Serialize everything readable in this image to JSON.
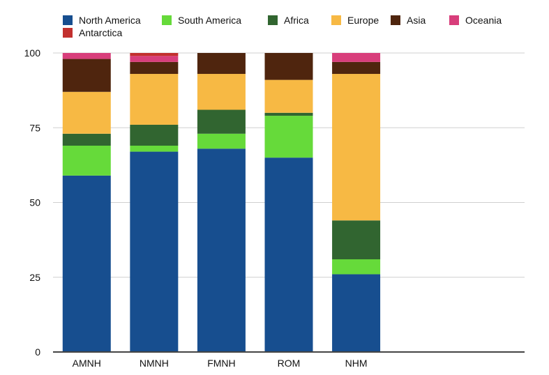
{
  "chart_data": {
    "type": "bar",
    "stacked": true,
    "title": "",
    "xlabel": "",
    "ylabel": "",
    "ylim": [
      0,
      100
    ],
    "yticks": [
      "0",
      "25",
      "50",
      "75",
      "100"
    ],
    "grid": true,
    "legend_position": "top-left",
    "categories": [
      "AMNH",
      "NMNH",
      "FMNH",
      "ROM",
      "NHM"
    ],
    "series": [
      {
        "name": "North America",
        "color": "#174e8f",
        "values": [
          59,
          67,
          68,
          65,
          26
        ]
      },
      {
        "name": "South America",
        "color": "#66da3a",
        "values": [
          10,
          2,
          5,
          14,
          5
        ]
      },
      {
        "name": "Africa",
        "color": "#316530",
        "values": [
          4,
          7,
          8,
          1,
          13
        ]
      },
      {
        "name": "Europe",
        "color": "#f7b944",
        "values": [
          14,
          17,
          12,
          11,
          49
        ]
      },
      {
        "name": "Asia",
        "color": "#4f250e",
        "values": [
          11,
          4,
          7,
          9,
          4
        ]
      },
      {
        "name": "Oceania",
        "color": "#d83e7b",
        "values": [
          2,
          2,
          0,
          0,
          3
        ]
      },
      {
        "name": "Antarctica",
        "color": "#c2302e",
        "values": [
          0,
          1,
          0,
          0,
          0
        ]
      }
    ]
  }
}
